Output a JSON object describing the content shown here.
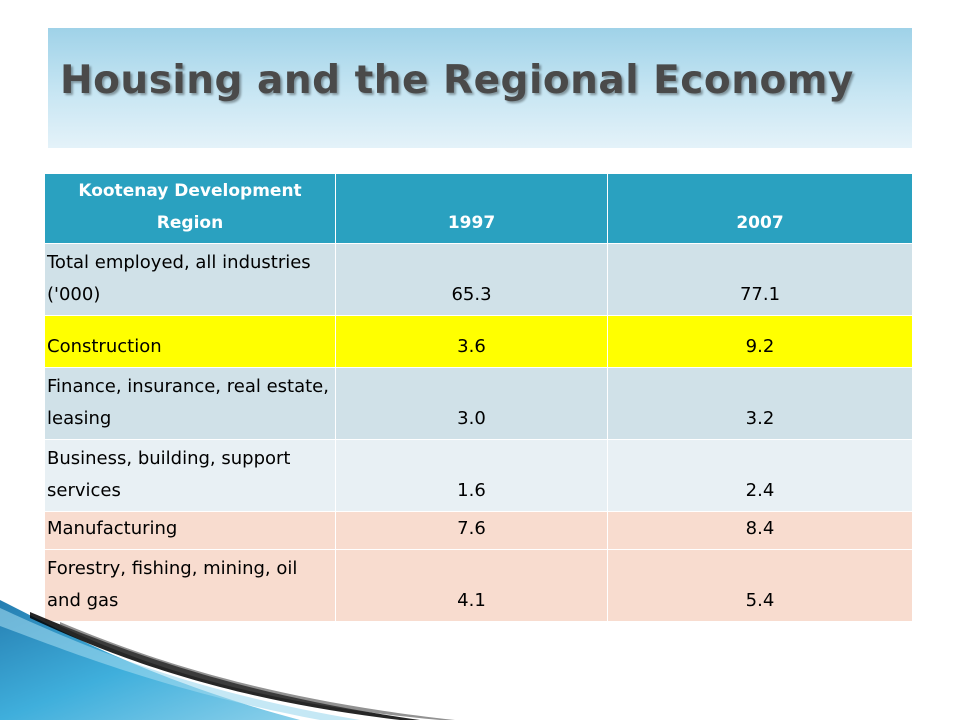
{
  "slide": {
    "title": "Housing and the Regional Economy"
  },
  "table": {
    "headers": [
      "Kootenay Development Region",
      "1997",
      "2007"
    ],
    "rows": [
      {
        "label": "Total employed, all industries ('000)",
        "v1997": "65.3",
        "v2007": "77.1",
        "color": "#d0e1e8"
      },
      {
        "label": "Construction",
        "v1997": "3.6",
        "v2007": "9.2",
        "color": "#ffff00"
      },
      {
        "label": "Finance, insurance, real estate, leasing",
        "v1997": "3.0",
        "v2007": "3.2",
        "color": "#d0e1e8"
      },
      {
        "label": "Business, building, support services",
        "v1997": "1.6",
        "v2007": "2.4",
        "color": "#e8f0f4"
      },
      {
        "label": "Manufacturing",
        "v1997": "7.6",
        "v2007": "8.4",
        "color": "#f8dccf"
      },
      {
        "label": "Forestry, fishing, mining, oil and gas",
        "v1997": "4.1",
        "v2007": "5.4",
        "color": "#f8dccf"
      }
    ]
  },
  "colors": {
    "header": "#2aa1c0",
    "accent_blue": "#1e8fc4"
  }
}
